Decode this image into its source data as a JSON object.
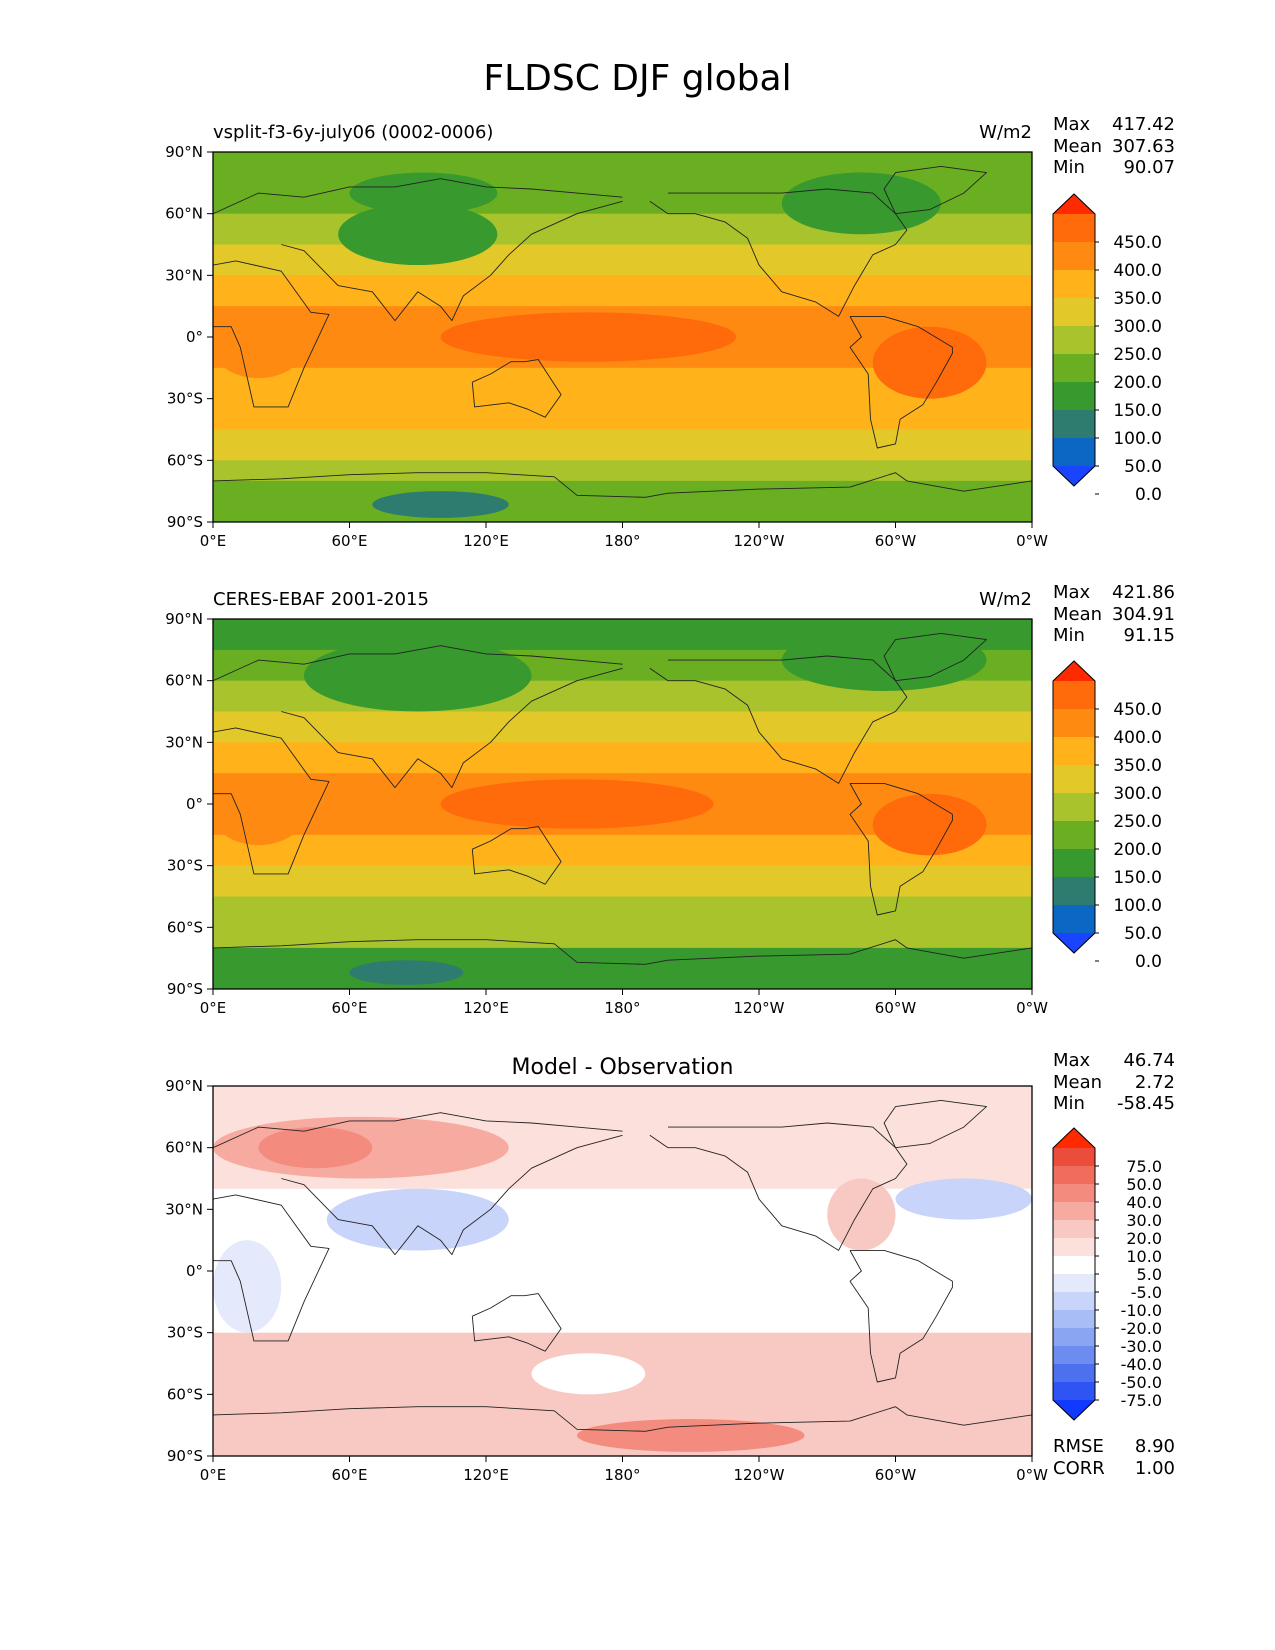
{
  "title": "FLDSC DJF global",
  "palettes": {
    "abs": [
      "#1a44ff",
      "#0b66c4",
      "#2e7c70",
      "#37992e",
      "#6aae22",
      "#a8c32c",
      "#e2c829",
      "#ffb21a",
      "#ff8a12",
      "#ff6a0a",
      "#ff2a00"
    ],
    "diff": [
      "#1239ff",
      "#2e55f3",
      "#4d70ee",
      "#6c8cf0",
      "#8aa6f3",
      "#a8bdf6",
      "#c8d4f9",
      "#e4e9fb",
      "#ffffff",
      "#fbe0dc",
      "#f8c9c2",
      "#f6aaa0",
      "#f38c7f",
      "#f06c5c",
      "#ec4c3a",
      "#ff2a00"
    ]
  },
  "chart_data": [
    {
      "type": "heatmap",
      "title": "vsplit-f3-6y-july06 (0002-0006)",
      "units": "W/m2",
      "stats": {
        "max_label": "Max",
        "max": "417.42",
        "mean_label": "Mean",
        "mean": "307.63",
        "min_label": "Min",
        "min": "90.07"
      },
      "colorbar_ticks": [
        "450.0",
        "400.0",
        "350.0",
        "300.0",
        "250.0",
        "200.0",
        "150.0",
        "100.0",
        "50.0",
        "0.0"
      ],
      "x_ticks": [
        "0°E",
        "60°E",
        "120°E",
        "180°",
        "120°W",
        "60°W",
        "0°W"
      ],
      "y_ticks": [
        "90°N",
        "60°N",
        "30°N",
        "0°",
        "30°S",
        "60°S",
        "90°S"
      ],
      "xlim": [
        0,
        360
      ],
      "ylim": [
        -90,
        90
      ],
      "bands": [
        {
          "lat": [
            75,
            90
          ],
          "level": 4
        },
        {
          "lat": [
            60,
            75
          ],
          "level": 4
        },
        {
          "lat": [
            45,
            60
          ],
          "level": 5
        },
        {
          "lat": [
            30,
            45
          ],
          "level": 6
        },
        {
          "lat": [
            15,
            30
          ],
          "level": 7
        },
        {
          "lat": [
            -15,
            15
          ],
          "level": 8
        },
        {
          "lat": [
            -30,
            -15
          ],
          "level": 7
        },
        {
          "lat": [
            -45,
            -30
          ],
          "level": 7
        },
        {
          "lat": [
            -60,
            -45
          ],
          "level": 6
        },
        {
          "lat": [
            -70,
            -60
          ],
          "level": 5
        },
        {
          "lat": [
            -90,
            -70
          ],
          "level": 4
        }
      ],
      "patches": [
        {
          "lon": [
            100,
            230
          ],
          "lat": [
            -12,
            12
          ],
          "level": 9
        },
        {
          "lon": [
            0,
            40
          ],
          "lat": [
            -20,
            10
          ],
          "level": 8
        },
        {
          "lon": [
            55,
            125
          ],
          "lat": [
            35,
            65
          ],
          "level": 3
        },
        {
          "lon": [
            60,
            125
          ],
          "lat": [
            60,
            80
          ],
          "level": 3
        },
        {
          "lon": [
            70,
            130
          ],
          "lat": [
            -88,
            -75
          ],
          "level": 2
        },
        {
          "lon": [
            250,
            320
          ],
          "lat": [
            50,
            80
          ],
          "level": 3
        },
        {
          "lon": [
            290,
            340
          ],
          "lat": [
            -30,
            5
          ],
          "level": 9
        }
      ]
    },
    {
      "type": "heatmap",
      "title": "CERES-EBAF 2001-2015",
      "units": "W/m2",
      "stats": {
        "max_label": "Max",
        "max": "421.86",
        "mean_label": "Mean",
        "mean": "304.91",
        "min_label": "Min",
        "min": "91.15"
      },
      "colorbar_ticks": [
        "450.0",
        "400.0",
        "350.0",
        "300.0",
        "250.0",
        "200.0",
        "150.0",
        "100.0",
        "50.0",
        "0.0"
      ],
      "x_ticks": [
        "0°E",
        "60°E",
        "120°E",
        "180°",
        "120°W",
        "60°W",
        "0°W"
      ],
      "y_ticks": [
        "90°N",
        "60°N",
        "30°N",
        "0°",
        "30°S",
        "60°S",
        "90°S"
      ],
      "xlim": [
        0,
        360
      ],
      "ylim": [
        -90,
        90
      ],
      "bands": [
        {
          "lat": [
            75,
            90
          ],
          "level": 3
        },
        {
          "lat": [
            60,
            75
          ],
          "level": 4
        },
        {
          "lat": [
            45,
            60
          ],
          "level": 5
        },
        {
          "lat": [
            30,
            45
          ],
          "level": 6
        },
        {
          "lat": [
            15,
            30
          ],
          "level": 7
        },
        {
          "lat": [
            -15,
            15
          ],
          "level": 8
        },
        {
          "lat": [
            -30,
            -15
          ],
          "level": 7
        },
        {
          "lat": [
            -45,
            -30
          ],
          "level": 6
        },
        {
          "lat": [
            -60,
            -45
          ],
          "level": 5
        },
        {
          "lat": [
            -70,
            -60
          ],
          "level": 5
        },
        {
          "lat": [
            -90,
            -70
          ],
          "level": 3
        }
      ],
      "patches": [
        {
          "lon": [
            100,
            220
          ],
          "lat": [
            -12,
            12
          ],
          "level": 9
        },
        {
          "lon": [
            0,
            40
          ],
          "lat": [
            -20,
            10
          ],
          "level": 8
        },
        {
          "lon": [
            40,
            140
          ],
          "lat": [
            45,
            80
          ],
          "level": 3
        },
        {
          "lon": [
            60,
            110
          ],
          "lat": [
            -88,
            -76
          ],
          "level": 2
        },
        {
          "lon": [
            250,
            340
          ],
          "lat": [
            55,
            85
          ],
          "level": 3
        },
        {
          "lon": [
            290,
            340
          ],
          "lat": [
            -25,
            5
          ],
          "level": 9
        }
      ]
    },
    {
      "type": "heatmap",
      "title": "Model - Observation",
      "units": "",
      "stats": {
        "max_label": "Max",
        "max": "46.74",
        "mean_label": "Mean",
        "mean": "2.72",
        "min_label": "Min",
        "min": "-58.45"
      },
      "colorbar_ticks": [
        "75.0",
        "50.0",
        "40.0",
        "30.0",
        "20.0",
        "10.0",
        "5.0",
        "-5.0",
        "-10.0",
        "-20.0",
        "-30.0",
        "-40.0",
        "-50.0",
        "-75.0"
      ],
      "x_ticks": [
        "0°E",
        "60°E",
        "120°E",
        "180°",
        "120°W",
        "60°W",
        "0°W"
      ],
      "y_ticks": [
        "90°N",
        "60°N",
        "30°N",
        "0°",
        "30°S",
        "60°S",
        "90°S"
      ],
      "xlim": [
        0,
        360
      ],
      "ylim": [
        -90,
        90
      ],
      "bands": [
        {
          "lat": [
            60,
            90
          ],
          "level": 9
        },
        {
          "lat": [
            40,
            60
          ],
          "level": 9
        },
        {
          "lat": [
            -30,
            40
          ],
          "level": 8
        },
        {
          "lat": [
            -60,
            -30
          ],
          "level": 10
        },
        {
          "lat": [
            -75,
            -60
          ],
          "level": 10
        },
        {
          "lat": [
            -90,
            -75
          ],
          "level": 10
        }
      ],
      "patches": [
        {
          "lon": [
            0,
            130
          ],
          "lat": [
            45,
            75
          ],
          "level": 11
        },
        {
          "lon": [
            20,
            70
          ],
          "lat": [
            50,
            70
          ],
          "level": 12
        },
        {
          "lon": [
            50,
            130
          ],
          "lat": [
            10,
            40
          ],
          "level": 6
        },
        {
          "lon": [
            0,
            30
          ],
          "lat": [
            -30,
            15
          ],
          "level": 7
        },
        {
          "lon": [
            160,
            260
          ],
          "lat": [
            -88,
            -72
          ],
          "level": 12
        },
        {
          "lon": [
            270,
            300
          ],
          "lat": [
            10,
            45
          ],
          "level": 10
        },
        {
          "lon": [
            300,
            360
          ],
          "lat": [
            25,
            45
          ],
          "level": 6
        },
        {
          "lon": [
            140,
            190
          ],
          "lat": [
            -60,
            -40
          ],
          "level": 8
        }
      ]
    }
  ],
  "footer": {
    "rmse_label": "RMSE",
    "rmse": "8.90",
    "corr_label": "CORR",
    "corr": "1.00"
  }
}
